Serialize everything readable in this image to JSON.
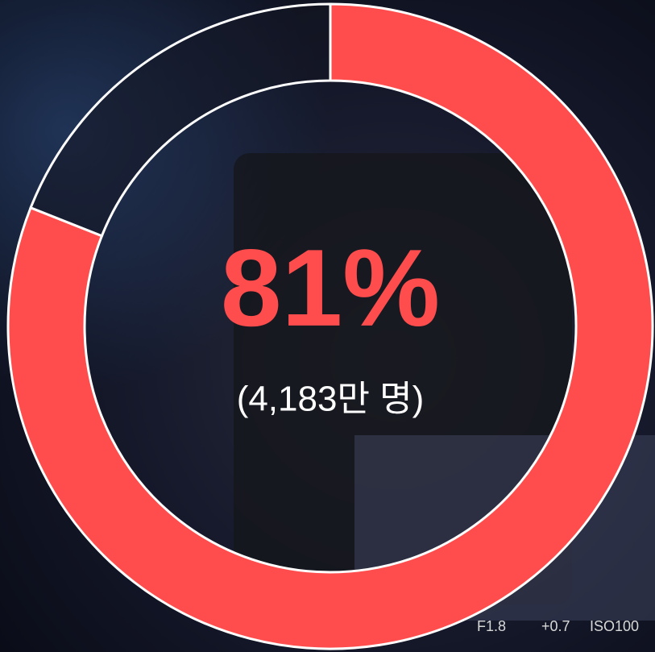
{
  "chart_data": {
    "type": "donut",
    "values": [
      81,
      19
    ],
    "value_labels": [
      "81%",
      null
    ],
    "colors": [
      "#ff4d4d",
      "rgba(20,22,34,0.55)"
    ],
    "annotation": "(4,183만 명)",
    "photo_overlay_texts": [
      "F1.8",
      "+0.7",
      "ISO100"
    ]
  }
}
